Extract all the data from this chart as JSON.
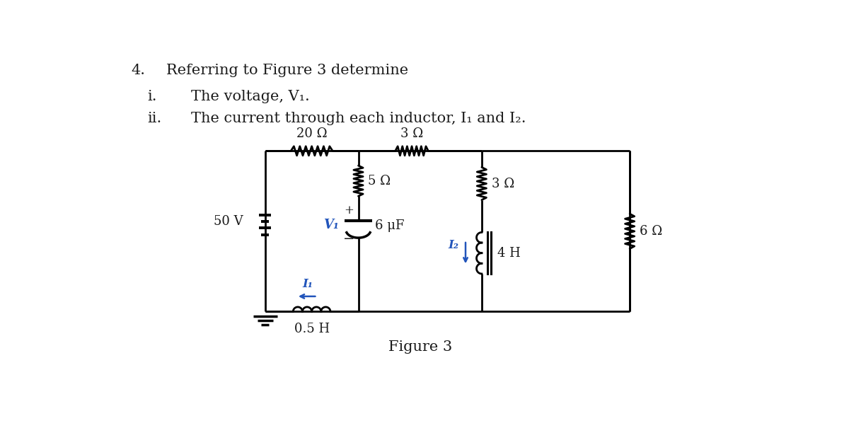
{
  "title_number": "4.",
  "title_text": "Referring to Figure 3 determine",
  "item_i_num": "i.",
  "item_i_text": "The voltage, V₁.",
  "item_ii_num": "ii.",
  "item_ii_text": "The current through each inductor, I₁ and I₂.",
  "figure_caption": "Figure 3",
  "source_voltage": "50 V",
  "r20": "20 Ω",
  "r3_top": "3 Ω",
  "r5": "5 Ω",
  "r3_vert": "3 Ω",
  "r6": "6 Ω",
  "cap": "6 μF",
  "ind05": "0.5 H",
  "ind4": "4 H",
  "I1": "I₁",
  "I2": "I₂",
  "V1": "V₁",
  "bg_color": "#ffffff",
  "circuit_color": "#000000",
  "label_color": "#2255bb",
  "text_color": "#1a1a1a",
  "fs_text": 15,
  "fs_circ": 13
}
